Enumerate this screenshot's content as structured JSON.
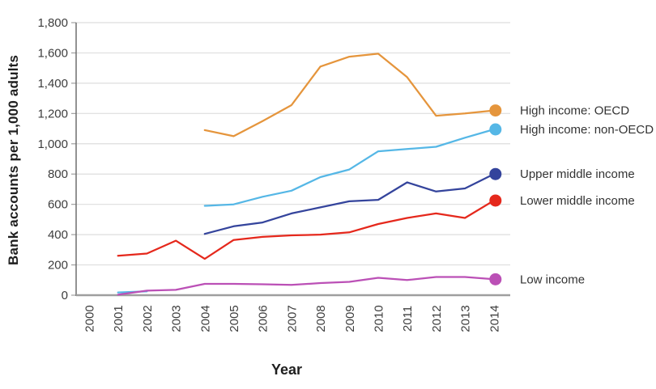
{
  "chart_data": {
    "type": "line",
    "title": "",
    "xlabel": "Year",
    "ylabel": "Bank accounts per 1,000 adults",
    "x_tick_labels": [
      "2000",
      "2001",
      "2002",
      "2003",
      "2004",
      "2005",
      "2006",
      "2007",
      "2008",
      "2009",
      "2010",
      "2011",
      "2012",
      "2013",
      "2014"
    ],
    "x_range": [
      2000,
      2014
    ],
    "ylim": [
      0,
      1800
    ],
    "grid": true,
    "legend_position": "right-of-line-ends",
    "yticks": [
      {
        "v": 0,
        "label": "0"
      },
      {
        "v": 200,
        "label": "200"
      },
      {
        "v": 400,
        "label": "400"
      },
      {
        "v": 600,
        "label": "600"
      },
      {
        "v": 800,
        "label": "800"
      },
      {
        "v": 1000,
        "label": "1,000"
      },
      {
        "v": 1200,
        "label": "1,200"
      },
      {
        "v": 1400,
        "label": "1,400"
      },
      {
        "v": 1600,
        "label": "1,600"
      },
      {
        "v": 1800,
        "label": "1,800"
      }
    ],
    "series": [
      {
        "name": "High income: OECD",
        "color": "#E5953C",
        "segments": [
          {
            "x": [
              2004,
              2005,
              2006,
              2007,
              2008,
              2009,
              2010,
              2011,
              2012,
              2013,
              2014
            ],
            "values": [
              1090,
              1050,
              1150,
              1255,
              1510,
              1575,
              1595,
              1440,
              1185,
              1200,
              1220
            ]
          }
        ]
      },
      {
        "name": "High income: non-OECD",
        "color": "#55B7E6",
        "segments": [
          {
            "x": [
              2001,
              2002
            ],
            "values": [
              18,
              25
            ]
          },
          {
            "x": [
              2004,
              2005,
              2006,
              2007,
              2008,
              2009,
              2010,
              2011,
              2012,
              2013,
              2014
            ],
            "values": [
              590,
              600,
              650,
              690,
              780,
              830,
              950,
              965,
              980,
              1040,
              1095
            ]
          }
        ]
      },
      {
        "name": "Upper middle income",
        "color": "#34449C",
        "segments": [
          {
            "x": [
              2004,
              2005,
              2006,
              2007,
              2008,
              2009,
              2010,
              2011,
              2012,
              2013,
              2014
            ],
            "values": [
              405,
              455,
              480,
              540,
              580,
              620,
              630,
              745,
              685,
              705,
              800
            ]
          }
        ]
      },
      {
        "name": "Lower middle income",
        "color": "#E5281C",
        "segments": [
          {
            "x": [
              2001,
              2002,
              2003,
              2004,
              2005,
              2006,
              2007,
              2008,
              2009,
              2010,
              2011,
              2012,
              2013,
              2014
            ],
            "values": [
              260,
              275,
              360,
              240,
              365,
              385,
              395,
              400,
              415,
              470,
              510,
              540,
              510,
              625
            ]
          }
        ]
      },
      {
        "name": "Low income",
        "color": "#BB50B6",
        "segments": [
          {
            "x": [
              2001,
              2002,
              2003,
              2004,
              2005,
              2006,
              2007,
              2008,
              2009,
              2010,
              2011,
              2012,
              2013,
              2014
            ],
            "values": [
              3,
              30,
              35,
              75,
              75,
              72,
              68,
              80,
              88,
              115,
              100,
              120,
              120,
              105
            ]
          }
        ]
      }
    ]
  }
}
